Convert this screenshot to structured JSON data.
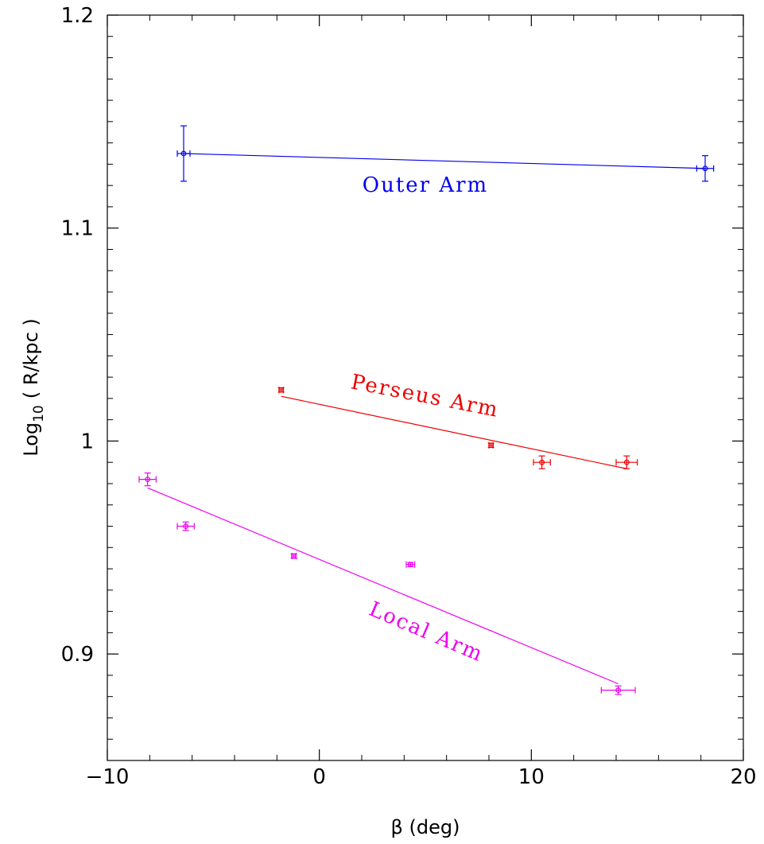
{
  "chart_data": {
    "type": "scatter",
    "title": "",
    "xlabel": "β (deg)",
    "ylabel_main": "Log",
    "ylabel_sub": "10",
    "ylabel_rest": "( R/kpc )",
    "xlim": [
      -10,
      20
    ],
    "ylim": [
      0.85,
      1.2
    ],
    "xticks": [
      -10,
      0,
      10,
      20
    ],
    "xtick_labels": [
      "−10",
      "0",
      "10",
      "20"
    ],
    "yticks": [
      0.9,
      1.0,
      1.1,
      1.2
    ],
    "ytick_labels": [
      "0.9",
      "1",
      "1.1",
      "1.2"
    ],
    "grid": false,
    "series": [
      {
        "name": "Outer Arm",
        "color": "#0000ee",
        "points": [
          {
            "x": -6.4,
            "y": 1.135,
            "xerr": 0.3,
            "yerr": 0.013
          },
          {
            "x": 18.2,
            "y": 1.128,
            "xerr": 0.4,
            "yerr": 0.006
          }
        ],
        "fit": {
          "x": [
            -6.4,
            18.2
          ],
          "y": [
            1.135,
            1.128
          ]
        }
      },
      {
        "name": "Perseus Arm",
        "color": "#ee0000",
        "points": [
          {
            "x": -1.8,
            "y": 1.024,
            "xerr": 0.1,
            "yerr": 0.001
          },
          {
            "x": 8.1,
            "y": 0.998,
            "xerr": 0.1,
            "yerr": 0.001
          },
          {
            "x": 10.5,
            "y": 0.99,
            "xerr": 0.4,
            "yerr": 0.003
          },
          {
            "x": 14.5,
            "y": 0.99,
            "xerr": 0.5,
            "yerr": 0.003
          }
        ],
        "fit": {
          "x": [
            -1.8,
            14.5
          ],
          "y": [
            1.021,
            0.987
          ]
        }
      },
      {
        "name": "Local Arm",
        "color": "#ee00ee",
        "points": [
          {
            "x": -8.1,
            "y": 0.982,
            "xerr": 0.4,
            "yerr": 0.003
          },
          {
            "x": -6.3,
            "y": 0.96,
            "xerr": 0.4,
            "yerr": 0.002
          },
          {
            "x": -1.2,
            "y": 0.946,
            "xerr": 0.1,
            "yerr": 0.001
          },
          {
            "x": 4.3,
            "y": 0.942,
            "xerr": 0.2,
            "yerr": 0.001
          },
          {
            "x": 14.1,
            "y": 0.883,
            "xerr": 0.8,
            "yerr": 0.002
          }
        ],
        "fit": {
          "x": [
            -8.1,
            14.1
          ],
          "y": [
            0.978,
            0.886
          ]
        }
      }
    ]
  }
}
